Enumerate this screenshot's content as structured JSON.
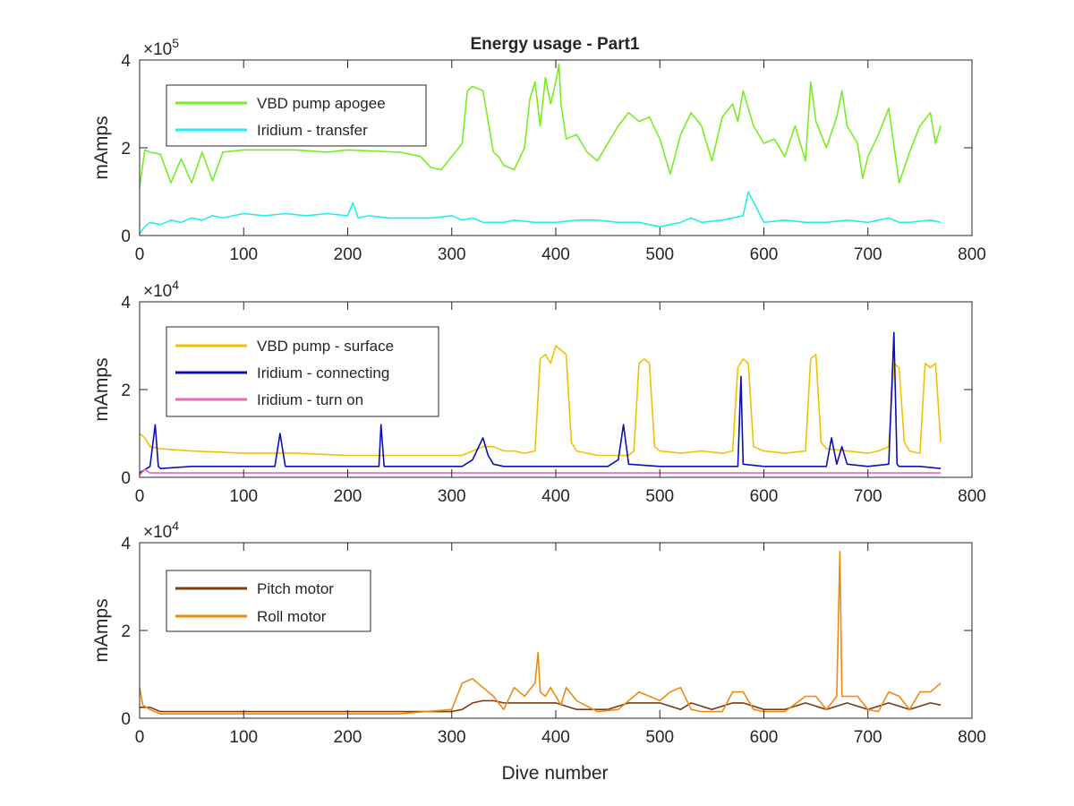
{
  "figure": {
    "title": "Energy usage - Part1",
    "xlabel": "Dive number"
  },
  "chart_data": [
    {
      "type": "line",
      "title": "Energy usage - Part1",
      "xlabel": "",
      "ylabel": "mAmps",
      "xlim": [
        0,
        800
      ],
      "ylim": [
        0,
        400000
      ],
      "xticks": [
        0,
        100,
        200,
        300,
        400,
        500,
        600,
        700,
        800
      ],
      "yticks": [
        0,
        200000,
        400000
      ],
      "ytick_labels": [
        "0",
        "2",
        "4"
      ],
      "exponent_label": "×10",
      "exponent_power": "5",
      "grid": false,
      "legend_position": "top-left",
      "series": [
        {
          "name": "VBD pump apogee",
          "color": "#77ee22",
          "x": [
            0,
            5,
            10,
            20,
            30,
            40,
            50,
            60,
            70,
            80,
            100,
            150,
            180,
            200,
            250,
            270,
            280,
            290,
            300,
            310,
            315,
            320,
            330,
            340,
            345,
            350,
            360,
            370,
            375,
            380,
            385,
            390,
            395,
            400,
            403,
            405,
            410,
            420,
            430,
            440,
            450,
            460,
            470,
            480,
            490,
            500,
            510,
            520,
            530,
            540,
            550,
            560,
            570,
            575,
            580,
            590,
            600,
            610,
            620,
            630,
            640,
            645,
            650,
            660,
            670,
            675,
            680,
            690,
            695,
            700,
            710,
            720,
            730,
            740,
            750,
            760,
            765,
            770
          ],
          "y": [
            110000,
            195000,
            190000,
            185000,
            120000,
            175000,
            120000,
            190000,
            125000,
            190000,
            195000,
            195000,
            190000,
            195000,
            190000,
            180000,
            155000,
            150000,
            180000,
            210000,
            330000,
            340000,
            330000,
            190000,
            180000,
            160000,
            150000,
            200000,
            310000,
            350000,
            250000,
            360000,
            300000,
            350000,
            390000,
            300000,
            220000,
            230000,
            190000,
            170000,
            210000,
            250000,
            280000,
            260000,
            270000,
            220000,
            140000,
            230000,
            280000,
            250000,
            170000,
            270000,
            300000,
            260000,
            330000,
            250000,
            210000,
            220000,
            180000,
            250000,
            170000,
            350000,
            260000,
            200000,
            270000,
            330000,
            250000,
            210000,
            130000,
            180000,
            230000,
            290000,
            120000,
            190000,
            250000,
            280000,
            210000,
            250000
          ]
        },
        {
          "name": "Iridium - transfer",
          "color": "#22eeee",
          "x": [
            0,
            5,
            10,
            20,
            30,
            40,
            50,
            60,
            70,
            80,
            90,
            100,
            120,
            140,
            160,
            180,
            200,
            205,
            210,
            220,
            240,
            260,
            280,
            300,
            310,
            320,
            330,
            340,
            350,
            360,
            380,
            400,
            420,
            440,
            460,
            480,
            500,
            520,
            530,
            540,
            560,
            580,
            585,
            600,
            620,
            640,
            660,
            680,
            700,
            720,
            730,
            740,
            760,
            770
          ],
          "y": [
            5000,
            20000,
            30000,
            25000,
            35000,
            30000,
            40000,
            35000,
            45000,
            40000,
            45000,
            50000,
            45000,
            50000,
            45000,
            50000,
            45000,
            75000,
            40000,
            45000,
            40000,
            40000,
            40000,
            45000,
            35000,
            40000,
            30000,
            30000,
            30000,
            35000,
            30000,
            30000,
            35000,
            35000,
            30000,
            30000,
            20000,
            30000,
            40000,
            30000,
            35000,
            45000,
            100000,
            30000,
            35000,
            30000,
            30000,
            35000,
            30000,
            40000,
            30000,
            30000,
            35000,
            30000
          ]
        }
      ]
    },
    {
      "type": "line",
      "title": "",
      "xlabel": "",
      "ylabel": "mAmps",
      "xlim": [
        0,
        800
      ],
      "ylim": [
        0,
        40000
      ],
      "xticks": [
        0,
        100,
        200,
        300,
        400,
        500,
        600,
        700,
        800
      ],
      "yticks": [
        0,
        20000,
        40000
      ],
      "ytick_labels": [
        "0",
        "2",
        "4"
      ],
      "exponent_label": "×10",
      "exponent_power": "4",
      "grid": false,
      "legend_position": "top-left",
      "series": [
        {
          "name": "VBD pump - surface",
          "color": "#f2c200",
          "x": [
            0,
            5,
            10,
            20,
            50,
            100,
            150,
            200,
            250,
            300,
            310,
            320,
            330,
            340,
            350,
            360,
            370,
            380,
            385,
            390,
            395,
            400,
            405,
            410,
            415,
            420,
            440,
            460,
            470,
            475,
            480,
            485,
            490,
            495,
            500,
            520,
            540,
            560,
            570,
            575,
            580,
            585,
            590,
            600,
            620,
            640,
            645,
            650,
            655,
            660,
            680,
            700,
            710,
            720,
            725,
            730,
            735,
            740,
            750,
            755,
            760,
            765,
            770
          ],
          "y": [
            10000,
            9000,
            7000,
            6500,
            6000,
            5500,
            5500,
            5000,
            5000,
            5000,
            5000,
            6000,
            7000,
            7000,
            6000,
            6000,
            5500,
            6000,
            27000,
            28000,
            26000,
            30000,
            29000,
            28000,
            8000,
            6000,
            5000,
            5000,
            5000,
            6000,
            26000,
            27000,
            26000,
            7000,
            6000,
            5500,
            6000,
            5500,
            6000,
            25000,
            27000,
            26000,
            7000,
            6000,
            5500,
            6000,
            27000,
            28000,
            8000,
            6500,
            6000,
            5500,
            6000,
            7000,
            26000,
            25000,
            8000,
            6000,
            5500,
            26000,
            25000,
            26000,
            8000
          ]
        },
        {
          "name": "Iridium - connecting",
          "color": "#0d10b4",
          "x": [
            0,
            10,
            15,
            18,
            20,
            50,
            100,
            130,
            135,
            140,
            200,
            230,
            232,
            235,
            250,
            300,
            310,
            320,
            330,
            335,
            340,
            350,
            380,
            400,
            450,
            460,
            465,
            470,
            500,
            550,
            575,
            578,
            580,
            600,
            650,
            660,
            665,
            670,
            675,
            680,
            700,
            720,
            725,
            728,
            730,
            750,
            770
          ],
          "y": [
            1000,
            2500,
            12000,
            2500,
            2000,
            2500,
            2500,
            2500,
            10000,
            2500,
            2500,
            2500,
            12000,
            2500,
            2500,
            2500,
            2500,
            4000,
            9000,
            5000,
            3000,
            2500,
            2500,
            2500,
            2500,
            4000,
            12000,
            3000,
            2500,
            2500,
            2500,
            23000,
            3000,
            2500,
            2500,
            2500,
            9000,
            3000,
            7000,
            3000,
            2500,
            3000,
            33000,
            3000,
            2500,
            2500,
            2000
          ]
        },
        {
          "name": "Iridium - turn on",
          "color": "#ee66bb",
          "x": [
            0,
            5,
            10,
            50,
            100,
            150,
            200,
            250,
            300,
            350,
            400,
            450,
            500,
            550,
            600,
            650,
            700,
            750,
            770
          ],
          "y": [
            500,
            1800,
            1000,
            1000,
            1000,
            1000,
            1000,
            1000,
            1000,
            1000,
            1000,
            1000,
            1000,
            1000,
            1000,
            1000,
            1000,
            1000,
            1000
          ]
        }
      ]
    },
    {
      "type": "line",
      "title": "",
      "xlabel": "Dive number",
      "ylabel": "mAmps",
      "xlim": [
        0,
        800
      ],
      "ylim": [
        0,
        40000
      ],
      "xticks": [
        0,
        100,
        200,
        300,
        400,
        500,
        600,
        700,
        800
      ],
      "yticks": [
        0,
        20000,
        40000
      ],
      "ytick_labels": [
        "0",
        "2",
        "4"
      ],
      "exponent_label": "×10",
      "exponent_power": "4",
      "grid": false,
      "legend_position": "top-left",
      "series": [
        {
          "name": "Pitch motor",
          "color": "#7a3e16",
          "x": [
            0,
            10,
            20,
            50,
            100,
            150,
            200,
            250,
            300,
            310,
            320,
            330,
            340,
            350,
            380,
            400,
            420,
            450,
            470,
            480,
            500,
            520,
            530,
            550,
            570,
            580,
            600,
            620,
            640,
            660,
            680,
            700,
            720,
            740,
            760,
            770
          ],
          "y": [
            2500,
            2500,
            1500,
            1500,
            1500,
            1500,
            1500,
            1500,
            1500,
            2000,
            3500,
            4000,
            4000,
            3500,
            3500,
            3500,
            2000,
            2000,
            3500,
            3500,
            3500,
            2000,
            3500,
            2000,
            3500,
            3500,
            2000,
            2000,
            3500,
            2000,
            3500,
            2000,
            3500,
            2000,
            3500,
            3000
          ]
        },
        {
          "name": "Roll motor",
          "color": "#ee8a10",
          "x": [
            0,
            3,
            10,
            20,
            50,
            100,
            150,
            200,
            250,
            300,
            310,
            320,
            330,
            340,
            350,
            360,
            370,
            380,
            383,
            385,
            390,
            395,
            400,
            405,
            410,
            420,
            440,
            460,
            480,
            500,
            510,
            520,
            530,
            540,
            560,
            570,
            580,
            590,
            600,
            620,
            640,
            650,
            660,
            670,
            673,
            675,
            680,
            690,
            700,
            710,
            720,
            730,
            740,
            750,
            760,
            770
          ],
          "y": [
            7000,
            3000,
            2000,
            1000,
            1000,
            1000,
            1000,
            1000,
            1000,
            2000,
            8000,
            9000,
            7000,
            5000,
            2000,
            7000,
            5000,
            8000,
            15000,
            6000,
            5000,
            7000,
            5000,
            3000,
            7000,
            4000,
            1500,
            2000,
            6000,
            4000,
            6000,
            7000,
            2000,
            1500,
            1500,
            6000,
            6000,
            2000,
            1500,
            1500,
            5000,
            5000,
            2000,
            5000,
            38000,
            5000,
            5000,
            5000,
            2000,
            1500,
            6000,
            5000,
            2000,
            6000,
            6000,
            8000
          ]
        }
      ]
    }
  ]
}
